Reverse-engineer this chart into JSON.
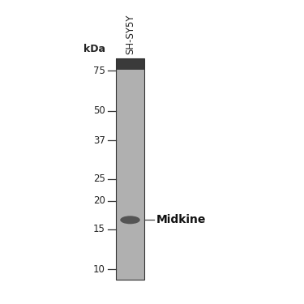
{
  "background_color": "#ffffff",
  "gel_color": "#b0b0b0",
  "gel_top_color": "#3a3a3a",
  "band_color": "#4a4a4a",
  "band_mw": 16.5,
  "lane_label": "SH-SY5Y",
  "kda_label": "kDa",
  "marker_label": "Midkine",
  "mw_ticks": [
    75,
    50,
    37,
    25,
    20,
    15,
    10
  ],
  "y_min": 9,
  "y_max": 85,
  "label_fontsize": 8.5,
  "lane_label_fontsize": 8.5,
  "marker_fontsize": 10,
  "kda_fontsize": 9
}
